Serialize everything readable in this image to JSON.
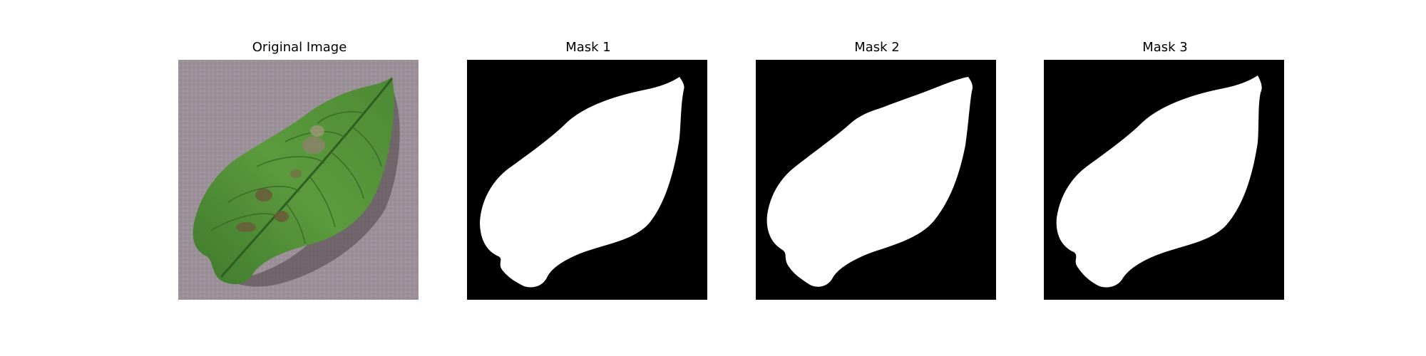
{
  "panels": [
    {
      "title": "Original Image",
      "kind": "photo",
      "subject": "green potato leaf with brown lesions on a mauve background"
    },
    {
      "title": "Mask 1",
      "kind": "binary-mask",
      "foreground": "#ffffff",
      "background": "#000000"
    },
    {
      "title": "Mask 2",
      "kind": "binary-mask",
      "foreground": "#ffffff",
      "background": "#000000"
    },
    {
      "title": "Mask 3",
      "kind": "binary-mask",
      "foreground": "#ffffff",
      "background": "#000000"
    }
  ],
  "colors": {
    "photo_background": "#9b8f98",
    "leaf": "#4f8a36",
    "leaf_dark": "#2f5e22",
    "lesion": "#6b5a3a",
    "mask_fg": "#ffffff",
    "mask_bg": "#000000"
  }
}
